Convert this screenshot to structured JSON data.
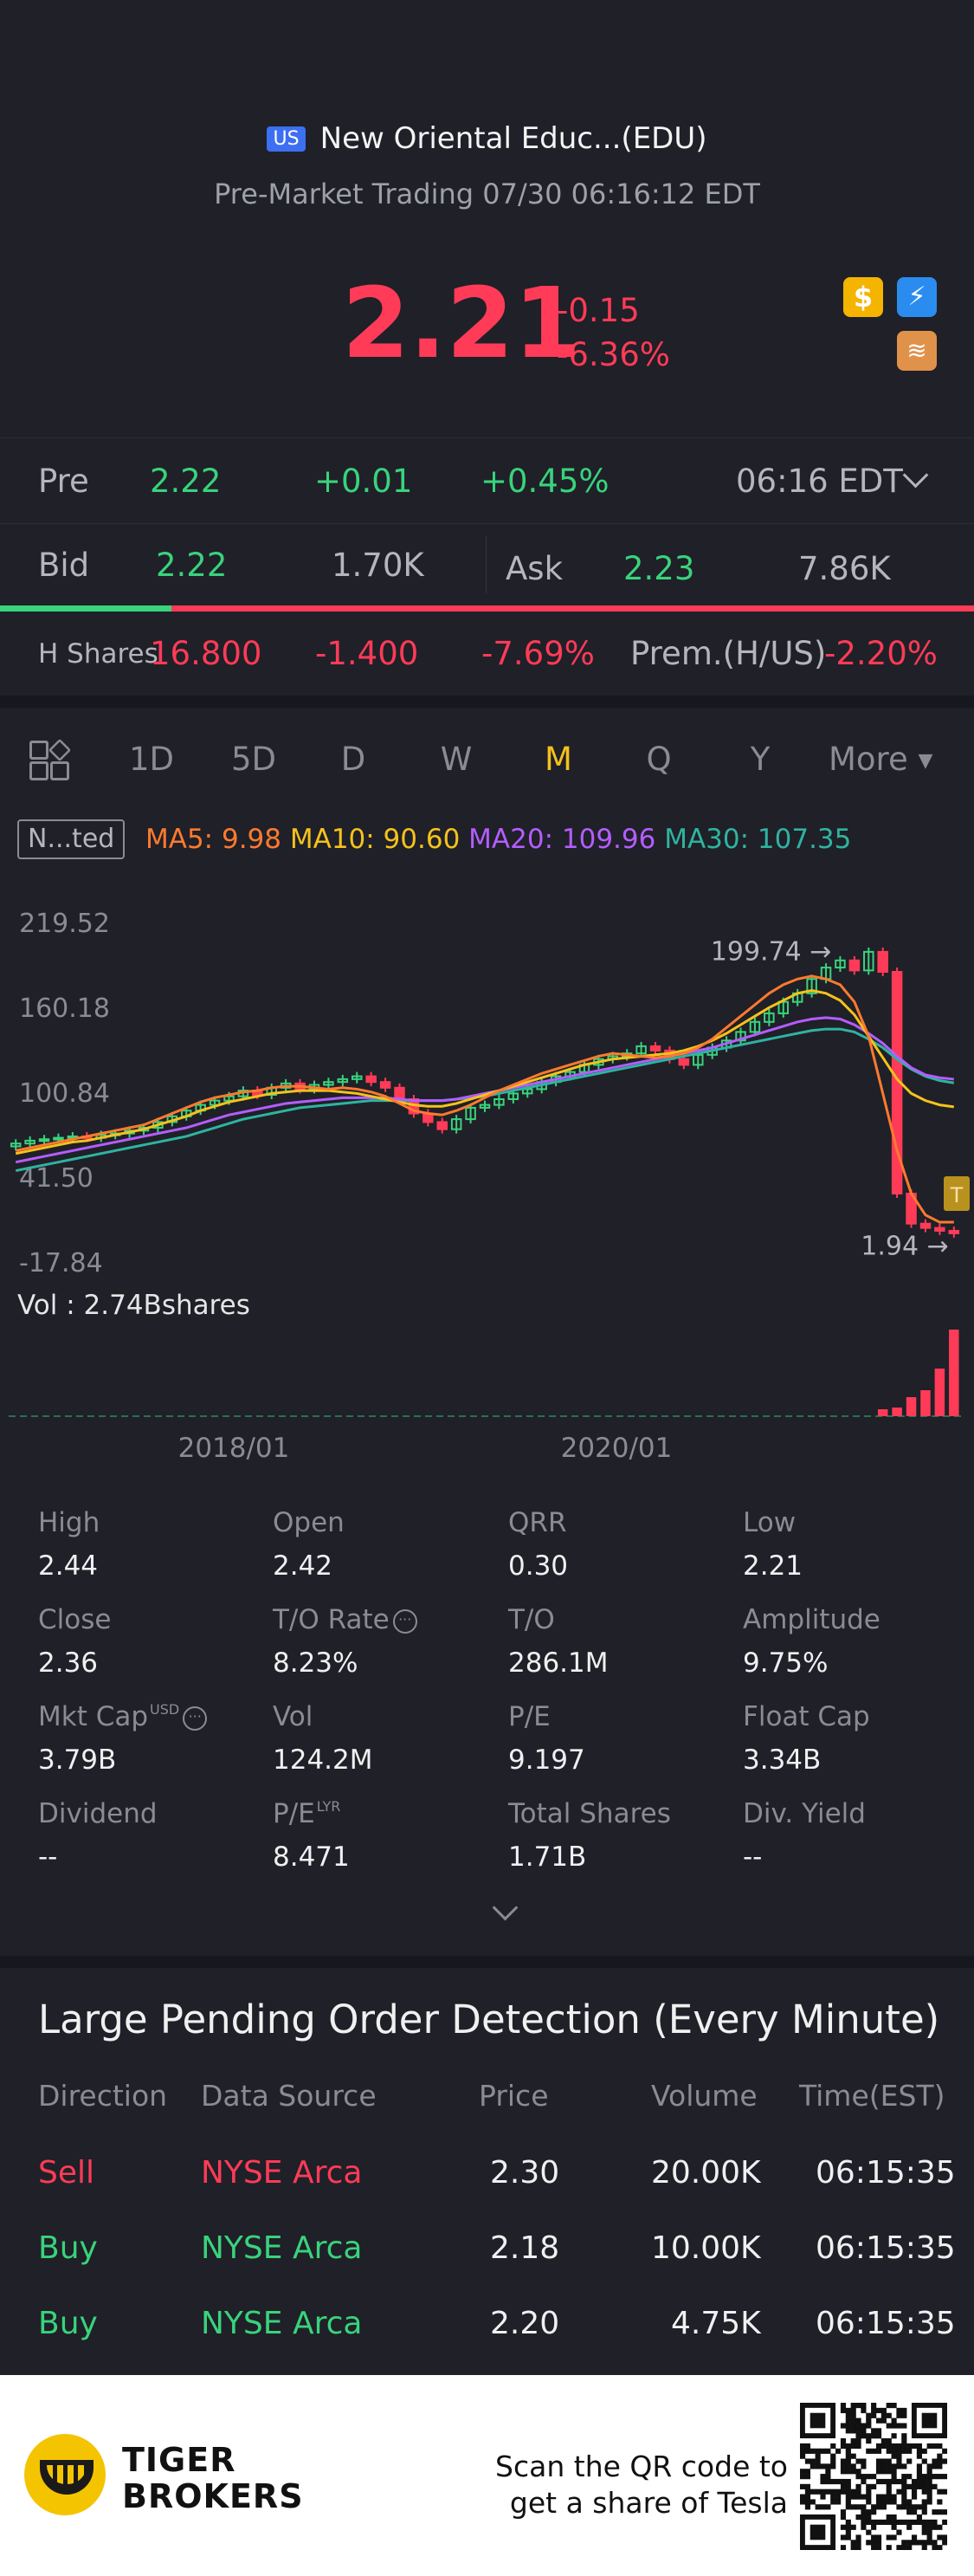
{
  "header": {
    "market_badge": "US",
    "title": "New Oriental Educ...(EDU)",
    "subtitle": "Pre-Market Trading 07/30 06:16:12 EDT"
  },
  "quote": {
    "price": "2.21",
    "change": "-0.15",
    "change_pct": "-6.36%",
    "icons": [
      "dollar-icon",
      "lightning-icon",
      "layers-icon"
    ]
  },
  "pre": {
    "label": "Pre",
    "price": "2.22",
    "change": "+0.01",
    "change_pct": "+0.45%",
    "time": "06:16 EDT"
  },
  "bid_ask": {
    "bid_label": "Bid",
    "bid": "2.22",
    "bid_size": "1.70K",
    "ask_label": "Ask",
    "ask": "2.23",
    "ask_size": "7.86K",
    "bid_fraction": 0.176
  },
  "h_shares": {
    "label": "H Shares",
    "price": "16.800",
    "change": "-1.400",
    "change_pct": "-7.69%",
    "prem_label": "Prem.(H/US)",
    "prem": "-2.20%"
  },
  "tabs": {
    "items": [
      "1D",
      "5D",
      "D",
      "W",
      "M",
      "Q",
      "Y"
    ],
    "active": "M",
    "more": "More"
  },
  "ma": {
    "adjust": "N...ted",
    "ma5": "MA5: 9.98",
    "ma10": "MA10: 90.60",
    "ma20": "MA20: 109.96",
    "ma30": "MA30: 107.35",
    "colors": {
      "ma5": "#ff7a2e",
      "ma10": "#f5c21b",
      "ma20": "#b45dff",
      "ma30": "#2fb3a0"
    }
  },
  "chart_data": {
    "type": "candlestick",
    "y_ticks": [
      "219.52",
      "160.18",
      "100.84",
      "41.50",
      "-17.84"
    ],
    "ylim": [
      -17.84,
      219.52
    ],
    "x_ticks": [
      "2018/01",
      "2020/01"
    ],
    "high_label": "199.74",
    "low_label": "1.94",
    "vol_label": "Vol  : 2.74Bshares",
    "closes": [
      65,
      67,
      68,
      69,
      70,
      69,
      71,
      72,
      74,
      76,
      80,
      84,
      88,
      92,
      95,
      98,
      102,
      99,
      104,
      107,
      103,
      106,
      108,
      110,
      112,
      108,
      104,
      96,
      86,
      80,
      75,
      82,
      90,
      92,
      96,
      100,
      103,
      108,
      112,
      115,
      120,
      124,
      126,
      128,
      133,
      130,
      124,
      120,
      127,
      132,
      137,
      143,
      150,
      156,
      164,
      170,
      180,
      188,
      193,
      186,
      199,
      185,
      30,
      9,
      6,
      4,
      2.21
    ],
    "ma5": [
      60,
      62,
      64,
      66,
      68,
      70,
      72,
      74,
      76,
      78,
      82,
      86,
      90,
      94,
      97,
      99,
      101,
      102,
      104,
      105,
      105,
      104,
      103,
      104,
      103,
      101,
      98,
      93,
      88,
      86,
      85,
      88,
      92,
      97,
      102,
      106,
      110,
      114,
      117,
      120,
      123,
      126,
      128,
      127,
      126,
      125,
      126,
      128,
      132,
      138,
      146,
      154,
      162,
      170,
      176,
      180,
      182,
      180,
      176,
      164,
      140,
      100,
      60,
      30,
      15,
      9.98,
      9.98
    ],
    "ma10": [
      58,
      60,
      62,
      64,
      66,
      67,
      69,
      71,
      73,
      75,
      78,
      81,
      84,
      88,
      91,
      94,
      96,
      98,
      100,
      101,
      102,
      102,
      102,
      101,
      100,
      98,
      96,
      94,
      92,
      91,
      91,
      93,
      96,
      99,
      102,
      105,
      108,
      111,
      114,
      117,
      120,
      122,
      124,
      125,
      126,
      127,
      128,
      130,
      133,
      137,
      142,
      148,
      154,
      160,
      165,
      170,
      172,
      170,
      165,
      155,
      140,
      125,
      110,
      100,
      95,
      92,
      90.6
    ],
    "ma20": [
      52,
      54,
      56,
      58,
      60,
      62,
      64,
      66,
      68,
      70,
      72,
      74,
      76,
      79,
      82,
      85,
      87,
      89,
      91,
      93,
      94,
      95,
      96,
      97,
      97,
      97,
      97,
      96,
      95,
      95,
      95,
      96,
      98,
      100,
      102,
      104,
      106,
      108,
      110,
      112,
      114,
      116,
      118,
      120,
      122,
      124,
      126,
      128,
      130,
      132,
      135,
      138,
      141,
      144,
      147,
      150,
      152,
      153,
      152,
      148,
      142,
      135,
      126,
      118,
      113,
      111,
      109.96
    ],
    "ma30": [
      46,
      48,
      50,
      52,
      54,
      56,
      58,
      60,
      62,
      64,
      66,
      68,
      70,
      73,
      76,
      79,
      82,
      84,
      86,
      88,
      90,
      91,
      92,
      93,
      94,
      95,
      95,
      95,
      95,
      95,
      95,
      96,
      97,
      98,
      100,
      102,
      104,
      106,
      108,
      110,
      112,
      114,
      116,
      118,
      120,
      122,
      124,
      126,
      128,
      130,
      132,
      134,
      136,
      138,
      140,
      142,
      144,
      145,
      145,
      143,
      138,
      132,
      124,
      117,
      112,
      109,
      107.35
    ],
    "volumes": [
      0,
      0,
      0,
      0,
      0,
      0,
      0,
      0,
      0,
      0,
      0,
      0,
      0,
      0,
      0,
      0,
      0,
      0,
      0,
      0,
      0,
      0,
      0,
      0,
      0,
      0,
      0,
      0,
      0,
      0,
      0,
      0,
      0,
      0,
      0,
      0,
      0,
      0,
      0,
      0,
      0,
      0,
      0,
      0,
      0,
      0,
      0,
      0,
      0,
      0,
      0,
      0,
      0,
      0,
      0,
      0,
      0,
      0,
      0,
      0,
      0,
      0.08,
      0.1,
      0.22,
      0.3,
      0.55,
      1.0
    ]
  },
  "stats": [
    {
      "label": "High",
      "value": "2.44"
    },
    {
      "label": "Open",
      "value": "2.42"
    },
    {
      "label": "QRR",
      "value": "0.30"
    },
    {
      "label": "Low",
      "value": "2.21"
    },
    {
      "label": "Close",
      "value": "2.36"
    },
    {
      "label": "T/O Rate",
      "value": "8.23%"
    },
    {
      "label": "T/O",
      "value": "286.1M"
    },
    {
      "label": "Amplitude",
      "value": "9.75%"
    },
    {
      "label": "Mkt Cap",
      "value": "3.79B",
      "sup": "USD"
    },
    {
      "label": "Vol",
      "value": "124.2M"
    },
    {
      "label": "P/E",
      "value": "9.197"
    },
    {
      "label": "Float Cap",
      "value": "3.34B"
    },
    {
      "label": "Dividend",
      "value": "--"
    },
    {
      "label": "P/E",
      "value": "8.471",
      "sup": "LYR"
    },
    {
      "label": "Total Shares",
      "value": "1.71B"
    },
    {
      "label": "Div. Yield",
      "value": "--"
    }
  ],
  "pending": {
    "title": "Large Pending Order Detection (Every Minute)",
    "headers": {
      "direction": "Direction",
      "source": "Data Source",
      "price": "Price",
      "volume": "Volume",
      "time": "Time(EST)"
    },
    "rows": [
      {
        "direction": "Sell",
        "source": "NYSE Arca",
        "price": "2.30",
        "volume": "20.00K",
        "time": "06:15:35"
      },
      {
        "direction": "Buy",
        "source": "NYSE Arca",
        "price": "2.18",
        "volume": "10.00K",
        "time": "06:15:35"
      },
      {
        "direction": "Buy",
        "source": "NYSE Arca",
        "price": "2.20",
        "volume": "4.75K",
        "time": "06:15:35"
      }
    ]
  },
  "footer": {
    "brand_line1": "TIGER",
    "brand_line2": "BROKERS",
    "promo_line1": "Scan the QR code to",
    "promo_line2": "get a share of Tesla"
  }
}
